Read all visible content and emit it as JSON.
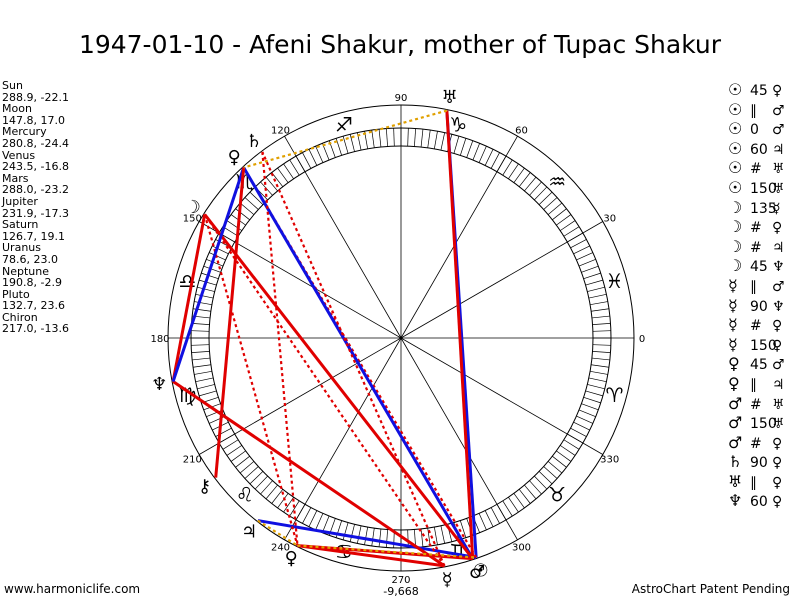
{
  "title": "1947-01-10 - Afeni Shakur, mother of Tupac Shakur",
  "positions": [
    {
      "name": "Sun",
      "value": "288.9, -22.1"
    },
    {
      "name": "Moon",
      "value": "147.8, 17.0"
    },
    {
      "name": "Mercury",
      "value": "280.8, -24.4"
    },
    {
      "name": "Venus",
      "value": "243.5, -16.8"
    },
    {
      "name": "Mars",
      "value": "288.0, -23.2"
    },
    {
      "name": "Jupiter",
      "value": "231.9, -17.3"
    },
    {
      "name": "Saturn",
      "value": "126.7, 19.1"
    },
    {
      "name": "Uranus",
      "value": "78.6, 23.0"
    },
    {
      "name": "Neptune",
      "value": "190.8, -2.9"
    },
    {
      "name": "Pluto",
      "value": "132.7, 23.6"
    },
    {
      "name": "Chiron",
      "value": "217.0, -13.6"
    }
  ],
  "aspects": [
    {
      "a": "☉",
      "sym": "45",
      "b": "♀"
    },
    {
      "a": "☉",
      "sym": "∥",
      "b": "♂"
    },
    {
      "a": "☉",
      "sym": "0",
      "b": "♂"
    },
    {
      "a": "☉",
      "sym": "60",
      "b": "♃"
    },
    {
      "a": "☉",
      "sym": "#",
      "b": "♅"
    },
    {
      "a": "☉",
      "sym": "150",
      "b": "♅"
    },
    {
      "a": "☽",
      "sym": "135",
      "b": "☿"
    },
    {
      "a": "☽",
      "sym": "#",
      "b": "♀"
    },
    {
      "a": "☽",
      "sym": "#",
      "b": "♃"
    },
    {
      "a": "☽",
      "sym": "45",
      "b": "♆"
    },
    {
      "a": "☿",
      "sym": "∥",
      "b": "♂"
    },
    {
      "a": "☿",
      "sym": "90",
      "b": "♆"
    },
    {
      "a": "☿",
      "sym": "#",
      "b": "♀"
    },
    {
      "a": "☿",
      "sym": "150",
      "b": "♀"
    },
    {
      "a": "♀",
      "sym": "45",
      "b": "♂"
    },
    {
      "a": "♀",
      "sym": "∥",
      "b": "♃"
    },
    {
      "a": "♂",
      "sym": "#",
      "b": "♅"
    },
    {
      "a": "♂",
      "sym": "150",
      "b": "♅"
    },
    {
      "a": "♂",
      "sym": "#",
      "b": "♀"
    },
    {
      "a": "♄",
      "sym": "90",
      "b": "♀"
    },
    {
      "a": "♅",
      "sym": "∥",
      "b": "♀"
    },
    {
      "a": "♆",
      "sym": "60",
      "b": "♀"
    }
  ],
  "degree_labels": [
    {
      "deg": 0,
      "text": "0"
    },
    {
      "deg": 30,
      "text": "30"
    },
    {
      "deg": 60,
      "text": "60"
    },
    {
      "deg": 90,
      "text": "90"
    },
    {
      "deg": 120,
      "text": "120"
    },
    {
      "deg": 150,
      "text": "150"
    },
    {
      "deg": 180,
      "text": "180"
    },
    {
      "deg": 210,
      "text": "210"
    },
    {
      "deg": 240,
      "text": "240"
    },
    {
      "deg": 270,
      "text": "270"
    },
    {
      "deg": 300,
      "text": "300"
    },
    {
      "deg": 330,
      "text": "330"
    }
  ],
  "zodiac": [
    {
      "deg": 15,
      "glyph": "♓",
      "name": "pisces"
    },
    {
      "deg": 45,
      "glyph": "♒",
      "name": "aquarius"
    },
    {
      "deg": 75,
      "glyph": "♑",
      "name": "capricorn"
    },
    {
      "deg": 105,
      "glyph": "♐",
      "name": "sagittarius"
    },
    {
      "deg": 135,
      "glyph": "♏",
      "name": "scorpio"
    },
    {
      "deg": 165,
      "glyph": "♎",
      "name": "libra"
    },
    {
      "deg": 195,
      "glyph": "♍",
      "name": "virgo"
    },
    {
      "deg": 225,
      "glyph": "♌",
      "name": "leo"
    },
    {
      "deg": 255,
      "glyph": "♋",
      "name": "cancer"
    },
    {
      "deg": 285,
      "glyph": "♊",
      "name": "gemini"
    },
    {
      "deg": 315,
      "glyph": "♉",
      "name": "taurus"
    },
    {
      "deg": 345,
      "glyph": "♈",
      "name": "aries"
    }
  ],
  "planets": [
    {
      "name": "sun",
      "glyph": "☉",
      "deg": 288.9
    },
    {
      "name": "moon",
      "glyph": "☽",
      "deg": 147.8
    },
    {
      "name": "mercury",
      "glyph": "☿",
      "deg": 280.8
    },
    {
      "name": "venus",
      "glyph": "♀",
      "deg": 243.5
    },
    {
      "name": "mars",
      "glyph": "♂",
      "deg": 288.0
    },
    {
      "name": "jupiter",
      "glyph": "♃",
      "deg": 231.9
    },
    {
      "name": "saturn",
      "glyph": "♄",
      "deg": 126.7
    },
    {
      "name": "uranus",
      "glyph": "♅",
      "deg": 78.6
    },
    {
      "name": "neptune",
      "glyph": "♆",
      "deg": 190.8
    },
    {
      "name": "pluto",
      "glyph": "♀",
      "deg": 132.7
    },
    {
      "name": "chiron",
      "glyph": "⚷",
      "deg": 217.0
    }
  ],
  "aspect_lines": [
    {
      "from": "sun",
      "to": "uranus",
      "color": "#1010e0",
      "style": "solid"
    },
    {
      "from": "sun",
      "to": "jupiter",
      "color": "#1010e0",
      "style": "solid"
    },
    {
      "from": "sun",
      "to": "pluto",
      "color": "#e00000",
      "style": "dotted"
    },
    {
      "from": "mars",
      "to": "pluto",
      "color": "#1010e0",
      "style": "solid"
    },
    {
      "from": "mars",
      "to": "uranus",
      "color": "#e00000",
      "style": "solid"
    },
    {
      "from": "mercury",
      "to": "neptune",
      "color": "#e00000",
      "style": "solid"
    },
    {
      "from": "mercury",
      "to": "moon",
      "color": "#e00000",
      "style": "dotted"
    },
    {
      "from": "mercury",
      "to": "saturn",
      "color": "#e00000",
      "style": "dotted"
    },
    {
      "from": "moon",
      "to": "mars",
      "color": "#e00000",
      "style": "solid"
    },
    {
      "from": "moon",
      "to": "neptune",
      "color": "#e00000",
      "style": "solid"
    },
    {
      "from": "moon",
      "to": "venus",
      "color": "#e00000",
      "style": "dotted"
    },
    {
      "from": "venus",
      "to": "mars",
      "color": "#e00000",
      "style": "solid"
    },
    {
      "from": "venus",
      "to": "mercury",
      "color": "#e00000",
      "style": "solid"
    },
    {
      "from": "neptune",
      "to": "pluto",
      "color": "#1010e0",
      "style": "solid"
    },
    {
      "from": "chiron",
      "to": "pluto",
      "color": "#e00000",
      "style": "solid"
    },
    {
      "from": "saturn",
      "to": "venus",
      "color": "#e00000",
      "style": "dotted"
    },
    {
      "from": "uranus",
      "to": "pluto",
      "color": "#e0a000",
      "style": "dotted"
    },
    {
      "from": "jupiter",
      "to": "venus",
      "color": "#e0a000",
      "style": "dotted"
    },
    {
      "from": "venus",
      "to": "sun",
      "color": "#e0a000",
      "style": "dotted"
    }
  ],
  "bottom_value": "-9,668",
  "footer_left": "www.harmoniclife.com",
  "footer_right": "AstroChart Patent Pending"
}
